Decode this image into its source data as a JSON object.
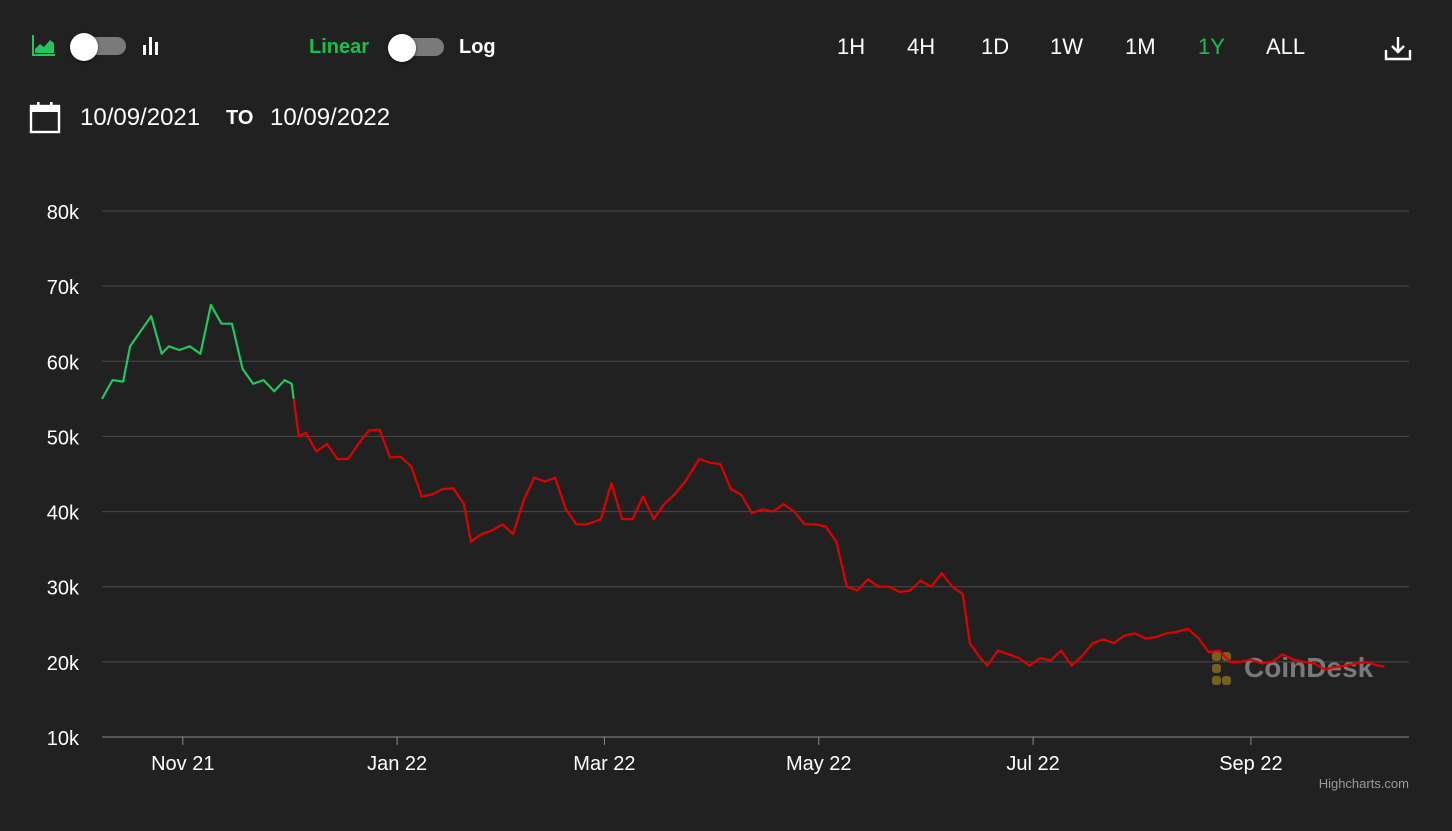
{
  "toolbar": {
    "chart_type_area_icon": "area-chart-icon",
    "chart_type_bar_icon": "bar-chart-icon",
    "scale_linear_label": "Linear",
    "scale_log_label": "Log",
    "ranges": [
      {
        "label": "1H",
        "active": false
      },
      {
        "label": "4H",
        "active": false
      },
      {
        "label": "1D",
        "active": false
      },
      {
        "label": "1W",
        "active": false
      },
      {
        "label": "1M",
        "active": false
      },
      {
        "label": "1Y",
        "active": true
      },
      {
        "label": "ALL",
        "active": false
      }
    ],
    "download_icon": "download-icon"
  },
  "date_range": {
    "calendar_icon": "calendar-icon",
    "from": "10/09/2021",
    "to_label": "TO",
    "to": "10/09/2022"
  },
  "colors": {
    "background": "#212121",
    "up": "#22c55e",
    "down": "#e00000",
    "accent": "#16c050",
    "grid": "#4a4a4a"
  },
  "watermark": "CoinDesk",
  "credit": "Highcharts.com",
  "chart_data": {
    "type": "line",
    "title": "",
    "xlabel": "",
    "ylabel": "",
    "y_scale": "linear",
    "ylim": [
      10000,
      80000
    ],
    "y_ticks": [
      10000,
      20000,
      30000,
      40000,
      50000,
      60000,
      70000,
      80000
    ],
    "y_tick_labels": [
      "10k",
      "20k",
      "30k",
      "40k",
      "50k",
      "60k",
      "70k",
      "80k"
    ],
    "xlim": [
      "2021-10-09",
      "2022-10-09"
    ],
    "x_ticks": [
      "2021-11-01",
      "2022-01-01",
      "2022-03-01",
      "2022-05-01",
      "2022-07-01",
      "2022-09-01"
    ],
    "x_tick_labels": [
      "Nov 21",
      "Jan 22",
      "Mar 22",
      "May 22",
      "Jul 22",
      "Sep 22"
    ],
    "grid": true,
    "legend": "none",
    "series": [
      {
        "color_rule": "green at or above the first value, red below",
        "x": [
          "2021-10-09",
          "2021-10-12",
          "2021-10-15",
          "2021-10-17",
          "2021-10-20",
          "2021-10-23",
          "2021-10-26",
          "2021-10-28",
          "2021-10-31",
          "2021-11-03",
          "2021-11-06",
          "2021-11-09",
          "2021-11-12",
          "2021-11-15",
          "2021-11-18",
          "2021-11-21",
          "2021-11-24",
          "2021-11-27",
          "2021-11-30",
          "2021-12-02",
          "2021-12-04",
          "2021-12-06",
          "2021-12-09",
          "2021-12-12",
          "2021-12-15",
          "2021-12-18",
          "2021-12-21",
          "2021-12-24",
          "2021-12-27",
          "2021-12-30",
          "2022-01-02",
          "2022-01-05",
          "2022-01-08",
          "2022-01-11",
          "2022-01-14",
          "2022-01-17",
          "2022-01-20",
          "2022-01-22",
          "2022-01-25",
          "2022-01-28",
          "2022-01-31",
          "2022-02-03",
          "2022-02-06",
          "2022-02-09",
          "2022-02-12",
          "2022-02-15",
          "2022-02-18",
          "2022-02-21",
          "2022-02-24",
          "2022-02-28",
          "2022-03-03",
          "2022-03-06",
          "2022-03-09",
          "2022-03-12",
          "2022-03-15",
          "2022-03-18",
          "2022-03-21",
          "2022-03-24",
          "2022-03-28",
          "2022-03-31",
          "2022-04-03",
          "2022-04-06",
          "2022-04-09",
          "2022-04-12",
          "2022-04-15",
          "2022-04-18",
          "2022-04-21",
          "2022-04-24",
          "2022-04-27",
          "2022-04-30",
          "2022-05-03",
          "2022-05-06",
          "2022-05-09",
          "2022-05-12",
          "2022-05-15",
          "2022-05-18",
          "2022-05-21",
          "2022-05-24",
          "2022-05-27",
          "2022-05-30",
          "2022-06-02",
          "2022-06-05",
          "2022-06-08",
          "2022-06-11",
          "2022-06-13",
          "2022-06-16",
          "2022-06-18",
          "2022-06-21",
          "2022-06-24",
          "2022-06-27",
          "2022-06-30",
          "2022-07-03",
          "2022-07-06",
          "2022-07-09",
          "2022-07-12",
          "2022-07-15",
          "2022-07-18",
          "2022-07-21",
          "2022-07-24",
          "2022-07-27",
          "2022-07-30",
          "2022-08-02",
          "2022-08-05",
          "2022-08-08",
          "2022-08-11",
          "2022-08-14",
          "2022-08-17",
          "2022-08-20",
          "2022-08-23",
          "2022-08-26",
          "2022-08-29",
          "2022-09-01",
          "2022-09-04",
          "2022-09-07",
          "2022-09-10",
          "2022-09-13",
          "2022-09-16",
          "2022-09-19",
          "2022-09-22",
          "2022-09-25",
          "2022-09-28",
          "2022-10-01",
          "2022-10-04",
          "2022-10-07",
          "2022-10-09"
        ],
        "y": [
          55000,
          57500,
          57300,
          62000,
          64000,
          66000,
          61000,
          62000,
          61500,
          62000,
          61000,
          67500,
          65000,
          65000,
          59000,
          57000,
          57500,
          56000,
          57500,
          57000,
          50000,
          50500,
          48000,
          49000,
          47000,
          47000,
          49000,
          50800,
          50900,
          47200,
          47300,
          46000,
          42000,
          42300,
          43000,
          43100,
          41000,
          36000,
          37000,
          37500,
          38300,
          37000,
          41500,
          44500,
          44000,
          44500,
          40300,
          38300,
          38300,
          39000,
          43800,
          39000,
          39000,
          42000,
          39000,
          41000,
          42300,
          44000,
          47000,
          46500,
          46300,
          43000,
          42200,
          39800,
          40300,
          40000,
          41000,
          40000,
          38300,
          38300,
          38000,
          36000,
          30000,
          29500,
          31000,
          30000,
          30000,
          29300,
          29500,
          30800,
          30000,
          31800,
          30000,
          29000,
          22500,
          20500,
          19500,
          21500,
          21000,
          20500,
          19500,
          20500,
          20200,
          21500,
          19500,
          20800,
          22500,
          23000,
          22500,
          23500,
          23800,
          23100,
          23300,
          23800,
          24000,
          24400,
          23200,
          21300,
          21500,
          20000,
          20000,
          20300,
          19800,
          20000,
          21000,
          20300,
          20000,
          19800,
          19000,
          19300,
          19500,
          19800,
          20000,
          19500,
          19400
        ]
      }
    ]
  }
}
